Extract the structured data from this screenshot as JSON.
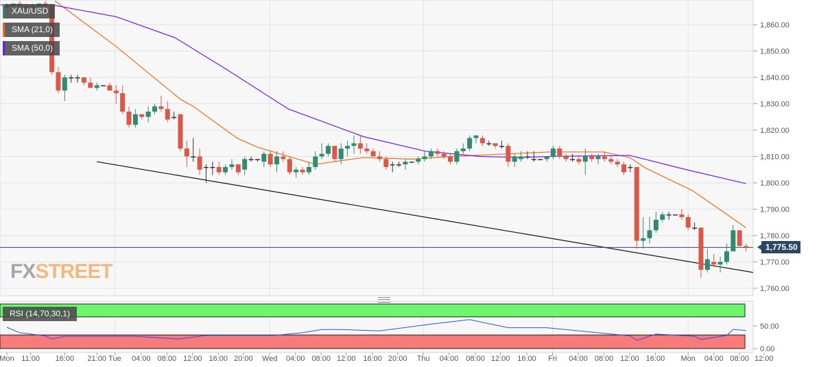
{
  "chart_data": {
    "type": "candlestick",
    "symbol": "XAU/USD",
    "interval": "1h",
    "ylim": [
      1755,
      1870
    ],
    "y_ticks": [
      "1,760.00",
      "1,770.00",
      "1,780.00",
      "1,790.00",
      "1,800.00",
      "1,810.00",
      "1,820.00",
      "1,830.00",
      "1,840.00",
      "1,850.00",
      "1,860.00"
    ],
    "y_tick_values": [
      1760,
      1770,
      1780,
      1790,
      1800,
      1810,
      1820,
      1830,
      1840,
      1850,
      1860
    ],
    "last_price": 1775.5,
    "last_price_label": "1,775.50",
    "x_ticks": [
      "Mon",
      "11:00",
      "16:00",
      "21:00",
      "Tue",
      "04:00",
      "08:00",
      "12:00",
      "16:00",
      "20:00",
      "Wed",
      "04:00",
      "08:00",
      "12:00",
      "16:00",
      "20:00",
      "Thu",
      "04:00",
      "08:00",
      "12:00",
      "16:00",
      "Fri",
      "04:00",
      "08:00",
      "12:00",
      "16:00",
      "Mon",
      "04:00",
      "08:00",
      "12:00"
    ],
    "x_tick_index": [
      0,
      3.7,
      9,
      14,
      16.8,
      20.9,
      24.9,
      28.9,
      32.9,
      36.8,
      40.9,
      44.9,
      48.9,
      52.8,
      56.9,
      60.8,
      64.8,
      68.8,
      72.9,
      76.8,
      80.9,
      84.9,
      88.9,
      92.9,
      96.9,
      100.9,
      106,
      110,
      114,
      117.8
    ],
    "day_separator_index": [
      16.8,
      40.9,
      64.8,
      84.9,
      106
    ],
    "candles_ohlc": [
      [
        1867,
        1868,
        1866,
        1867
      ],
      [
        1867,
        1868,
        1866,
        1868
      ],
      [
        1868,
        1869,
        1866,
        1867
      ],
      [
        1867,
        1868,
        1865,
        1866
      ],
      [
        1866,
        1868,
        1865,
        1867
      ],
      [
        1867,
        1868,
        1866,
        1868
      ],
      [
        1868,
        1869,
        1864,
        1867
      ],
      [
        1867,
        1868,
        1841,
        1842
      ],
      [
        1842,
        1844,
        1834,
        1835
      ],
      [
        1835,
        1841,
        1831,
        1840
      ],
      [
        1840,
        1841,
        1838,
        1840
      ],
      [
        1840,
        1841,
        1838,
        1840
      ],
      [
        1840,
        1840,
        1837,
        1838
      ],
      [
        1838,
        1840,
        1836,
        1836
      ],
      [
        1836,
        1838,
        1835,
        1837
      ],
      [
        1837,
        1837,
        1837,
        1837
      ],
      [
        1837,
        1838,
        1835,
        1835
      ],
      [
        1835,
        1837,
        1830,
        1834
      ],
      [
        1834,
        1837,
        1826,
        1827
      ],
      [
        1827,
        1829,
        1821,
        1822
      ],
      [
        1822,
        1828,
        1821,
        1826
      ],
      [
        1826,
        1826,
        1824,
        1825
      ],
      [
        1825,
        1829,
        1823,
        1827
      ],
      [
        1827,
        1830,
        1826,
        1829
      ],
      [
        1829,
        1833,
        1827,
        1828
      ],
      [
        1828,
        1831,
        1823,
        1824
      ],
      [
        1825,
        1827,
        1824,
        1825
      ],
      [
        1826,
        1826,
        1812,
        1813
      ],
      [
        1813,
        1816,
        1806,
        1810
      ],
      [
        1810,
        1817,
        1808,
        1810
      ],
      [
        1810,
        1813,
        1803,
        1805
      ],
      [
        1806,
        1807,
        1800,
        1806
      ],
      [
        1806,
        1808,
        1803,
        1806
      ],
      [
        1806,
        1808,
        1803,
        1804
      ],
      [
        1804,
        1807,
        1803,
        1806
      ],
      [
        1806,
        1809,
        1805,
        1807
      ],
      [
        1807,
        1807,
        1803,
        1804
      ],
      [
        1805,
        1810,
        1803,
        1809
      ],
      [
        1809,
        1810,
        1808,
        1809
      ],
      [
        1809,
        1809,
        1808,
        1809
      ],
      [
        1808,
        1812,
        1806,
        1811
      ],
      [
        1811,
        1812,
        1806,
        1807
      ],
      [
        1807,
        1812,
        1804,
        1810
      ],
      [
        1810,
        1812,
        1808,
        1809
      ],
      [
        1809,
        1810,
        1803,
        1804
      ],
      [
        1804,
        1806,
        1802,
        1805
      ],
      [
        1805,
        1806,
        1803,
        1804
      ],
      [
        1804,
        1808,
        1803,
        1806
      ],
      [
        1806,
        1812,
        1805,
        1810
      ],
      [
        1810,
        1815,
        1809,
        1811
      ],
      [
        1811,
        1815,
        1810,
        1814
      ],
      [
        1814,
        1814,
        1808,
        1809
      ],
      [
        1809,
        1815,
        1807,
        1813
      ],
      [
        1813,
        1816,
        1810,
        1814
      ],
      [
        1814,
        1818,
        1811,
        1815
      ],
      [
        1815,
        1818,
        1811,
        1813
      ],
      [
        1813,
        1815,
        1811,
        1812
      ],
      [
        1812,
        1813,
        1810,
        1810
      ],
      [
        1810,
        1812,
        1808,
        1809
      ],
      [
        1809,
        1810,
        1805,
        1806
      ],
      [
        1807,
        1808,
        1804,
        1807
      ],
      [
        1807,
        1808,
        1806,
        1807
      ],
      [
        1807,
        1809,
        1805,
        1808
      ],
      [
        1808,
        1808,
        1808,
        1808
      ],
      [
        1808,
        1810,
        1807,
        1809
      ],
      [
        1809,
        1812,
        1808,
        1810
      ],
      [
        1810,
        1813,
        1809,
        1812
      ],
      [
        1812,
        1813,
        1810,
        1811
      ],
      [
        1811,
        1812,
        1809,
        1810
      ],
      [
        1810,
        1811,
        1807,
        1808
      ],
      [
        1808,
        1813,
        1807,
        1812
      ],
      [
        1812,
        1815,
        1811,
        1813
      ],
      [
        1813,
        1818,
        1812,
        1817
      ],
      [
        1817,
        1818,
        1815,
        1818
      ],
      [
        1817,
        1818,
        1814,
        1815
      ],
      [
        1815,
        1816,
        1814,
        1815
      ],
      [
        1815,
        1815,
        1813,
        1814
      ],
      [
        1814,
        1816,
        1813,
        1814
      ],
      [
        1814,
        1815,
        1806,
        1808
      ],
      [
        1808,
        1811,
        1806,
        1810
      ],
      [
        1809,
        1812,
        1808,
        1810
      ],
      [
        1810,
        1812,
        1809,
        1810
      ],
      [
        1809,
        1812,
        1808,
        1809
      ],
      [
        1809,
        1809,
        1809,
        1809
      ],
      [
        1809,
        1810,
        1808,
        1810
      ],
      [
        1810,
        1814,
        1809,
        1813
      ],
      [
        1813,
        1814,
        1809,
        1810
      ],
      [
        1810,
        1811,
        1808,
        1809
      ],
      [
        1809,
        1811,
        1808,
        1809
      ],
      [
        1809,
        1810,
        1807,
        1808
      ],
      [
        1808,
        1813,
        1803,
        1810
      ],
      [
        1810,
        1811,
        1808,
        1809
      ],
      [
        1809,
        1811,
        1807,
        1810
      ],
      [
        1810,
        1812,
        1808,
        1809
      ],
      [
        1809,
        1810,
        1807,
        1808
      ],
      [
        1808,
        1809,
        1806,
        1807
      ],
      [
        1807,
        1808,
        1803,
        1804
      ],
      [
        1806,
        1807,
        1804,
        1806
      ],
      [
        1806,
        1806,
        1775,
        1778
      ],
      [
        1778,
        1787,
        1775,
        1779
      ],
      [
        1779,
        1787,
        1777,
        1782
      ],
      [
        1782,
        1789,
        1781,
        1786
      ],
      [
        1786,
        1789,
        1785,
        1788
      ],
      [
        1788,
        1789,
        1786,
        1788
      ],
      [
        1788,
        1788,
        1788,
        1788
      ],
      [
        1788,
        1790,
        1786,
        1787
      ],
      [
        1787,
        1788,
        1782,
        1783
      ],
      [
        1783,
        1785,
        1782,
        1783
      ],
      [
        1783,
        1783,
        1764,
        1767
      ],
      [
        1767,
        1775,
        1766,
        1771
      ],
      [
        1770,
        1773,
        1768,
        1769
      ],
      [
        1769,
        1772,
        1766,
        1770
      ],
      [
        1770,
        1777,
        1769,
        1774
      ],
      [
        1774,
        1784,
        1774,
        1782
      ],
      [
        1782,
        1782,
        1776,
        1776
      ],
      [
        1776,
        1777,
        1774,
        1775.5
      ]
    ],
    "series": [
      {
        "name": "SMA (21,0)",
        "color": "#f26b1d",
        "points": [
          [
            7.5,
            1869
          ],
          [
            17,
            1851.7
          ],
          [
            27,
            1831.7
          ],
          [
            29,
            1829
          ],
          [
            35.8,
            1817
          ],
          [
            39,
            1813.5
          ],
          [
            48,
            1807
          ],
          [
            55.5,
            1809.6
          ],
          [
            63,
            1809
          ],
          [
            69.4,
            1810
          ],
          [
            84.3,
            1811.7
          ],
          [
            92.8,
            1811.7
          ],
          [
            96.9,
            1809.6
          ],
          [
            99.3,
            1805.7
          ],
          [
            106.7,
            1797
          ],
          [
            115,
            1783
          ]
        ]
      },
      {
        "name": "SMA (50,0)",
        "color": "#6a1bf2",
        "points": [
          [
            -1,
            1867.5
          ],
          [
            7,
            1867.5
          ],
          [
            17,
            1863
          ],
          [
            26.2,
            1855
          ],
          [
            34.2,
            1843
          ],
          [
            43.8,
            1828
          ],
          [
            55.5,
            1817.5
          ],
          [
            65.1,
            1812
          ],
          [
            73.6,
            1810
          ],
          [
            80,
            1809.6
          ],
          [
            84.3,
            1810
          ],
          [
            96.9,
            1810.4
          ],
          [
            105.7,
            1805
          ],
          [
            115,
            1799.7
          ]
        ]
      }
    ],
    "trendline": [
      [
        14,
        1808
      ],
      [
        116.1,
        1766
      ]
    ],
    "indicator": {
      "name": "RSI (14,70,30,1)",
      "ylim": [
        0,
        100
      ],
      "y_ticks": [
        "0.00",
        "50.00"
      ],
      "y_tick_values": [
        0,
        50
      ],
      "overbought": 70,
      "oversold": 30,
      "color": "#2f4fe0",
      "points": [
        [
          0,
          47
        ],
        [
          2,
          35
        ],
        [
          6,
          28
        ],
        [
          7,
          21
        ],
        [
          9,
          27
        ],
        [
          20,
          27
        ],
        [
          26.7,
          21
        ],
        [
          31,
          29
        ],
        [
          41.6,
          29
        ],
        [
          46,
          35
        ],
        [
          49,
          42
        ],
        [
          52,
          42
        ],
        [
          58,
          39
        ],
        [
          66,
          54
        ],
        [
          72,
          64
        ],
        [
          78,
          46
        ],
        [
          84,
          46
        ],
        [
          97,
          28
        ],
        [
          98,
          18
        ],
        [
          101,
          32
        ],
        [
          107,
          27
        ],
        [
          108,
          20
        ],
        [
          112,
          29
        ],
        [
          113,
          42
        ],
        [
          115,
          40
        ]
      ]
    }
  },
  "legends": {
    "symbol": "XAU/USD",
    "sma21": "SMA (21,0)",
    "sma50": "SMA (50,0)"
  },
  "logo": {
    "fx": "FX",
    "street": "STREET"
  },
  "colors": {
    "up": "#338a72",
    "down": "#d9584a",
    "background": "#f7f7f7",
    "overbought": "#6ef56e",
    "oversold": "#f77b7b"
  }
}
